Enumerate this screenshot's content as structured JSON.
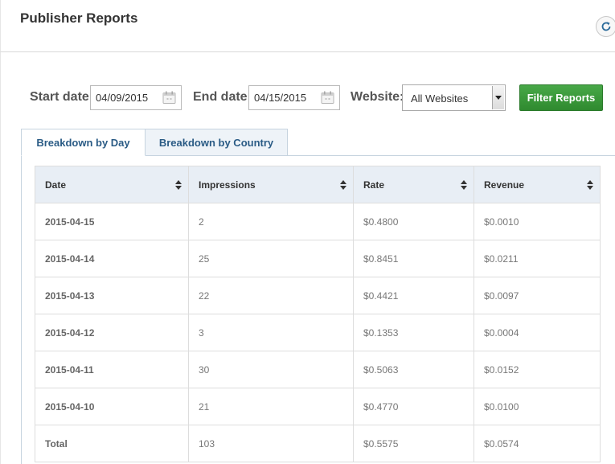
{
  "header": {
    "title": "Publisher Reports",
    "refresh_icon": "refresh-icon"
  },
  "filters": {
    "start_date_label": "Start date:",
    "start_date_value": "04/09/2015",
    "end_date_label": "End date:",
    "end_date_value": "04/15/2015",
    "website_label": "Website:",
    "website_value": "All Websites",
    "filter_button": "Filter Reports",
    "calendar_icon": "calendar-icon",
    "accent_green": "#3a9a3a"
  },
  "tabs": [
    {
      "label": "Breakdown by Day",
      "active": true
    },
    {
      "label": "Breakdown by Country",
      "active": false
    }
  ],
  "table": {
    "columns": [
      "Date",
      "Impressions",
      "Rate",
      "Revenue"
    ],
    "rows": [
      {
        "date": "2015-04-15",
        "impressions": "2",
        "rate": "$0.4800",
        "revenue": "$0.0010"
      },
      {
        "date": "2015-04-14",
        "impressions": "25",
        "rate": "$0.8451",
        "revenue": "$0.0211"
      },
      {
        "date": "2015-04-13",
        "impressions": "22",
        "rate": "$0.4421",
        "revenue": "$0.0097"
      },
      {
        "date": "2015-04-12",
        "impressions": "3",
        "rate": "$0.1353",
        "revenue": "$0.0004"
      },
      {
        "date": "2015-04-11",
        "impressions": "30",
        "rate": "$0.5063",
        "revenue": "$0.0152"
      },
      {
        "date": "2015-04-10",
        "impressions": "21",
        "rate": "$0.4770",
        "revenue": "$0.0100"
      },
      {
        "date": "Total",
        "impressions": "103",
        "rate": "$0.5575",
        "revenue": "$0.0574"
      }
    ]
  }
}
